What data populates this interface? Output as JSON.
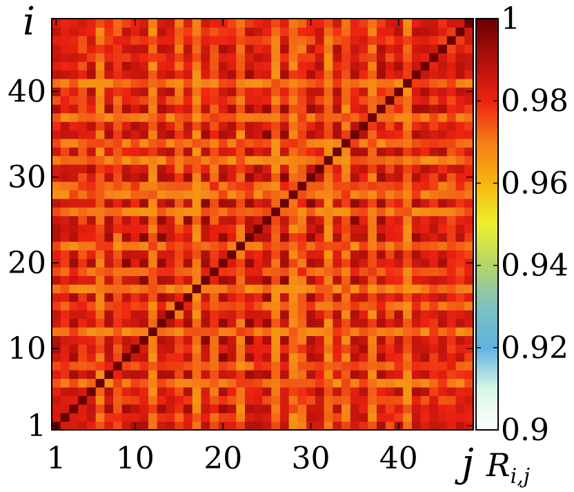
{
  "chart_data": {
    "type": "heatmap",
    "title": "",
    "xlabel": "j",
    "ylabel": "i",
    "x_range": [
      1,
      48
    ],
    "y_range": [
      1,
      48
    ],
    "x_ticks": [
      "1",
      "10",
      "20",
      "30",
      "40"
    ],
    "y_ticks": [
      "1",
      "10",
      "20",
      "30",
      "40"
    ],
    "colorbar": {
      "label_main": "R",
      "label_sub": "i,j",
      "range": [
        0.9,
        1.0
      ],
      "ticks": [
        "0.9",
        "0.92",
        "0.94",
        "0.96",
        "0.98",
        "1"
      ],
      "colormap": [
        {
          "v": 0.9,
          "color": "#ffffff"
        },
        {
          "v": 0.91,
          "color": "#d8f5e6"
        },
        {
          "v": 0.92,
          "color": "#5fb2e2"
        },
        {
          "v": 0.93,
          "color": "#7fc1c0"
        },
        {
          "v": 0.94,
          "color": "#b5d46a"
        },
        {
          "v": 0.95,
          "color": "#ecf02e"
        },
        {
          "v": 0.96,
          "color": "#f7b50f"
        },
        {
          "v": 0.97,
          "color": "#f57d17"
        },
        {
          "v": 0.98,
          "color": "#ed2211"
        },
        {
          "v": 0.99,
          "color": "#b0100a"
        },
        {
          "v": 1.0,
          "color": "#6a0000"
        }
      ]
    },
    "n": 48,
    "diagonal_value": 1.0,
    "value_range_observed": [
      0.966,
      1.0
    ],
    "column_base": [
      0.986,
      0.982,
      0.988,
      0.98,
      0.985,
      0.972,
      0.989,
      0.976,
      0.99,
      0.985,
      0.992,
      0.972,
      0.99,
      0.985,
      0.975,
      0.988,
      0.97,
      0.99,
      0.976,
      0.99,
      0.985,
      0.972,
      0.992,
      0.985,
      0.99,
      0.97,
      0.99,
      0.972,
      0.975,
      0.99,
      0.985,
      0.97,
      0.985,
      0.972,
      0.99,
      0.985,
      0.972,
      0.988,
      0.98,
      0.985,
      0.972,
      0.988,
      0.985,
      0.982,
      0.986,
      0.98,
      0.983,
      0.981
    ]
  }
}
